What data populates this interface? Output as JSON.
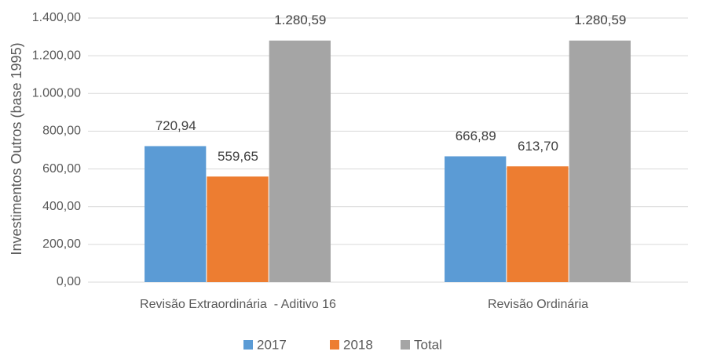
{
  "chart_data": {
    "type": "bar",
    "y_label": "Investimentos Outros (base 1995)",
    "categories": [
      "Revisão Extraordinária  - Aditivo 16",
      "Revisão Ordinária"
    ],
    "series": [
      {
        "name": "2017",
        "color": "#5b9bd5",
        "values": [
          720.94,
          666.89
        ],
        "value_labels": [
          "720,94",
          "666,89"
        ]
      },
      {
        "name": "2018",
        "color": "#ed7d31",
        "values": [
          559.65,
          613.7
        ],
        "value_labels": [
          "559,65",
          "613,70"
        ]
      },
      {
        "name": "Total",
        "color": "#a5a5a5",
        "values": [
          1280.59,
          1280.59
        ],
        "value_labels": [
          "1.280,59",
          "1.280,59"
        ]
      }
    ],
    "ylim": [
      0,
      1400
    ],
    "yticks": [
      {
        "value": 0,
        "label": "0,00"
      },
      {
        "value": 200,
        "label": "200,00"
      },
      {
        "value": 400,
        "label": "400,00"
      },
      {
        "value": 600,
        "label": "600,00"
      },
      {
        "value": 800,
        "label": "800,00"
      },
      {
        "value": 1000,
        "label": "1.000,00"
      },
      {
        "value": 1200,
        "label": "1.200,00"
      },
      {
        "value": 1400,
        "label": "1.400,00"
      }
    ],
    "grid": true,
    "legend": "bottom"
  }
}
